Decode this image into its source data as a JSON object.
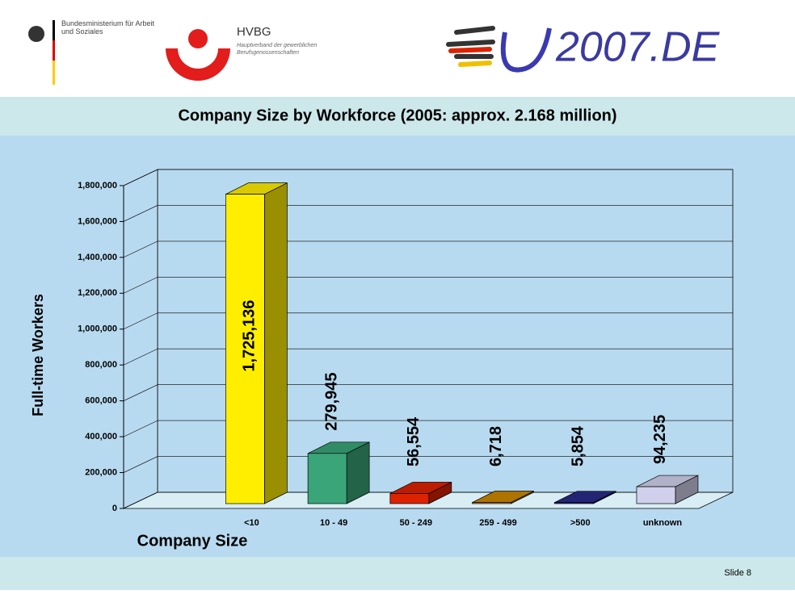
{
  "header": {
    "ministry": "Bundesministerium für Arbeit und Soziales",
    "hvbg": "HVBG",
    "hvbg_sub": "Hauptverband der gewerblichen Berufsgenossenschaften",
    "eu": "2007.DE"
  },
  "footer": "Slide 8",
  "chart_data": {
    "type": "bar3d",
    "title": "Company Size by Workforce (2005: approx. 2.168 million)",
    "xlabel": "Company Size",
    "ylabel": "Full-time Workers",
    "categories": [
      "<10",
      "10 - 49",
      "50 - 249",
      "259 - 499",
      ">500",
      "unknown"
    ],
    "values": [
      1725136,
      279945,
      56554,
      6718,
      5854,
      94235
    ],
    "value_labels": [
      "1,725,136",
      "279,945",
      "56,554",
      "6,718",
      "5,854",
      "94,235"
    ],
    "colors": [
      "#ffee00",
      "#3aa578",
      "#dd2200",
      "#cc8800",
      "#2a2a88",
      "#d0d0ec"
    ],
    "ylim": [
      0,
      1800000
    ],
    "yticks": [
      0,
      {
        "value": 200000,
        "label": "200,000"
      },
      {
        "value": 400000,
        "label": "400,000"
      },
      {
        "value": 600000,
        "label": "600,000"
      },
      {
        "value": 800000,
        "label": "800,000"
      },
      {
        "value": 1000000,
        "label": "1,000,000"
      },
      {
        "value": 1200000,
        "label": "1,200,000"
      },
      {
        "value": 1400000,
        "label": "1,400,000"
      },
      {
        "value": 1600000,
        "label": "1,600,000"
      },
      {
        "value": 1800000,
        "label": "1,800,000"
      }
    ],
    "grid": true
  }
}
